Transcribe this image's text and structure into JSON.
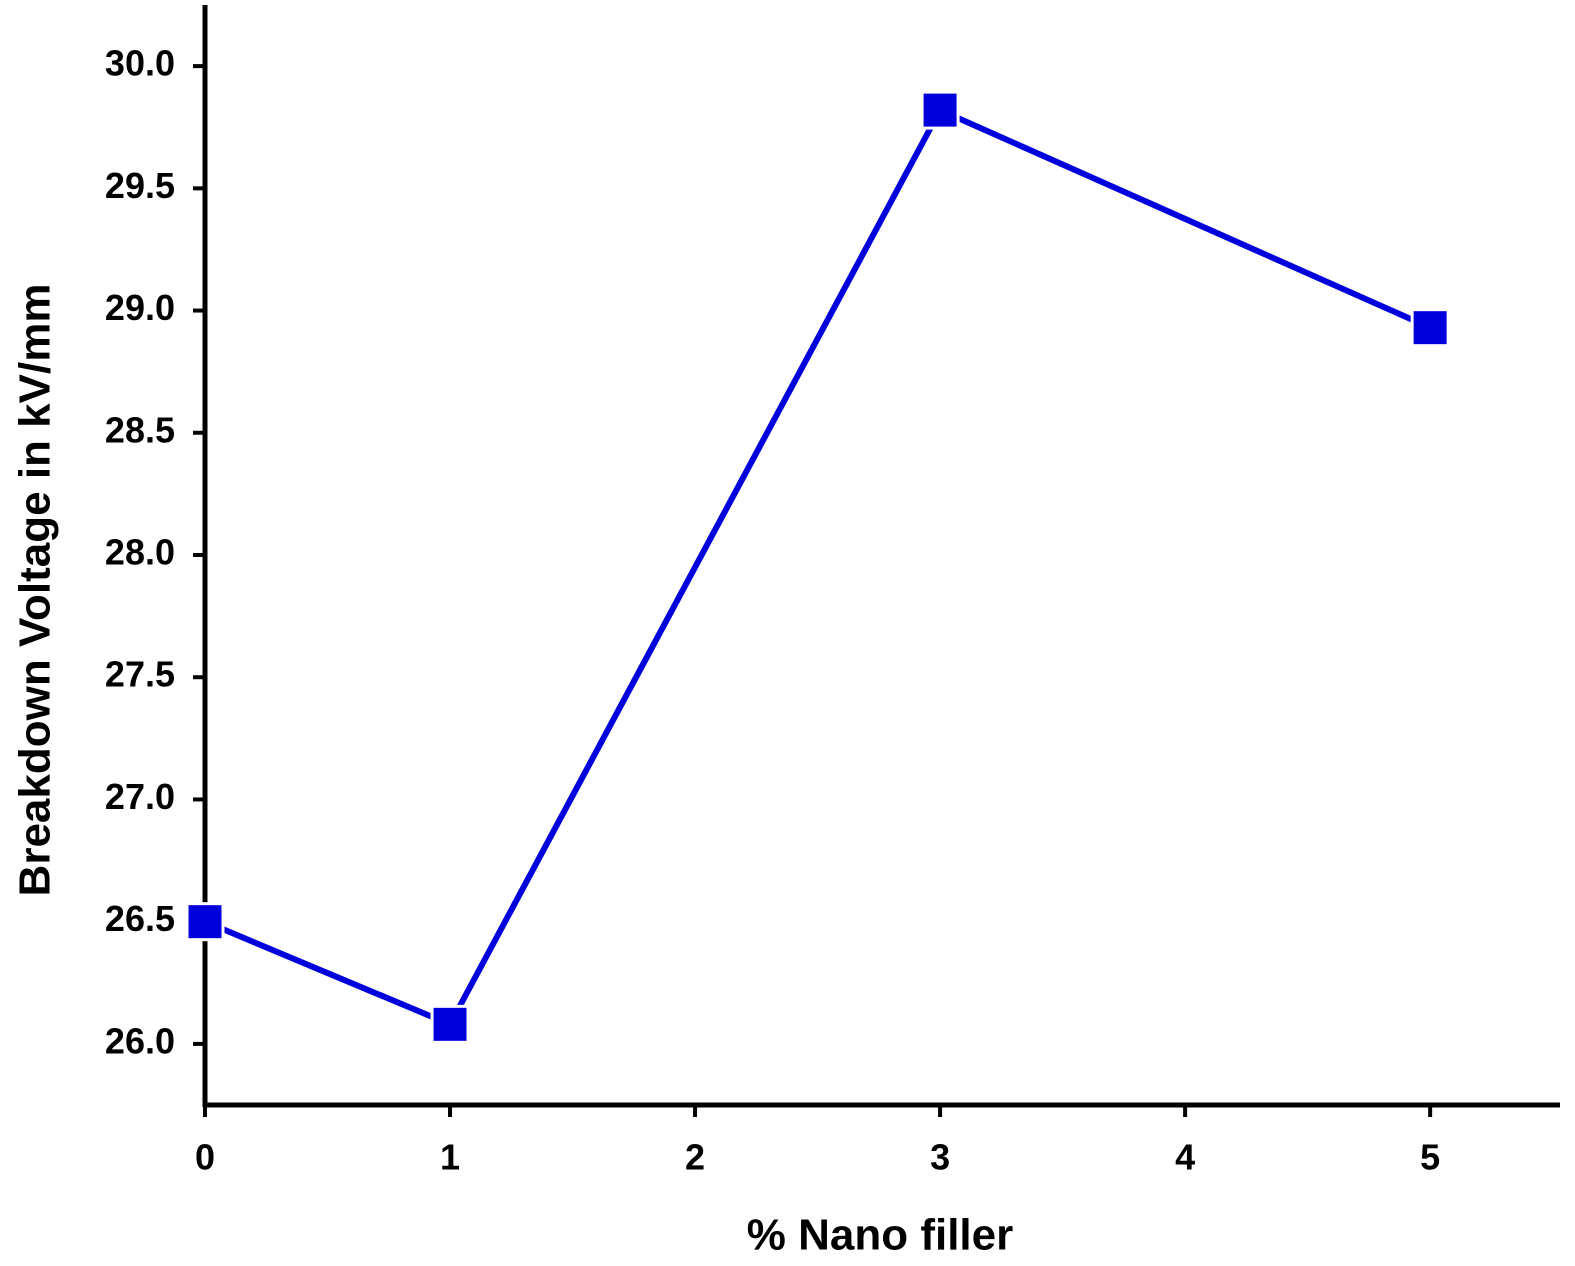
{
  "chart_data": {
    "type": "line",
    "x_label": "% Nano filler",
    "y_label": "Breakdown Voltage in kV/mm",
    "x": [
      0,
      1,
      3,
      5
    ],
    "series": [
      {
        "name": "Breakdown Voltage",
        "color": "#0000dd",
        "values": [
          26.5,
          26.08,
          29.82,
          28.93
        ]
      }
    ],
    "xlim": [
      0,
      5.53
    ],
    "ylim": [
      25.75,
      30.25
    ],
    "xticks": [
      0,
      1,
      2,
      3,
      4,
      5
    ],
    "yticks": [
      {
        "value": 26,
        "label": "26.0"
      },
      26.5,
      {
        "value": 27,
        "label": "27.0"
      },
      27.5,
      {
        "value": 28,
        "label": "28.0"
      },
      28.5,
      {
        "value": 29,
        "label": "29.0"
      },
      29.5,
      {
        "value": 30,
        "label": "30.0"
      }
    ],
    "grid": false
  }
}
